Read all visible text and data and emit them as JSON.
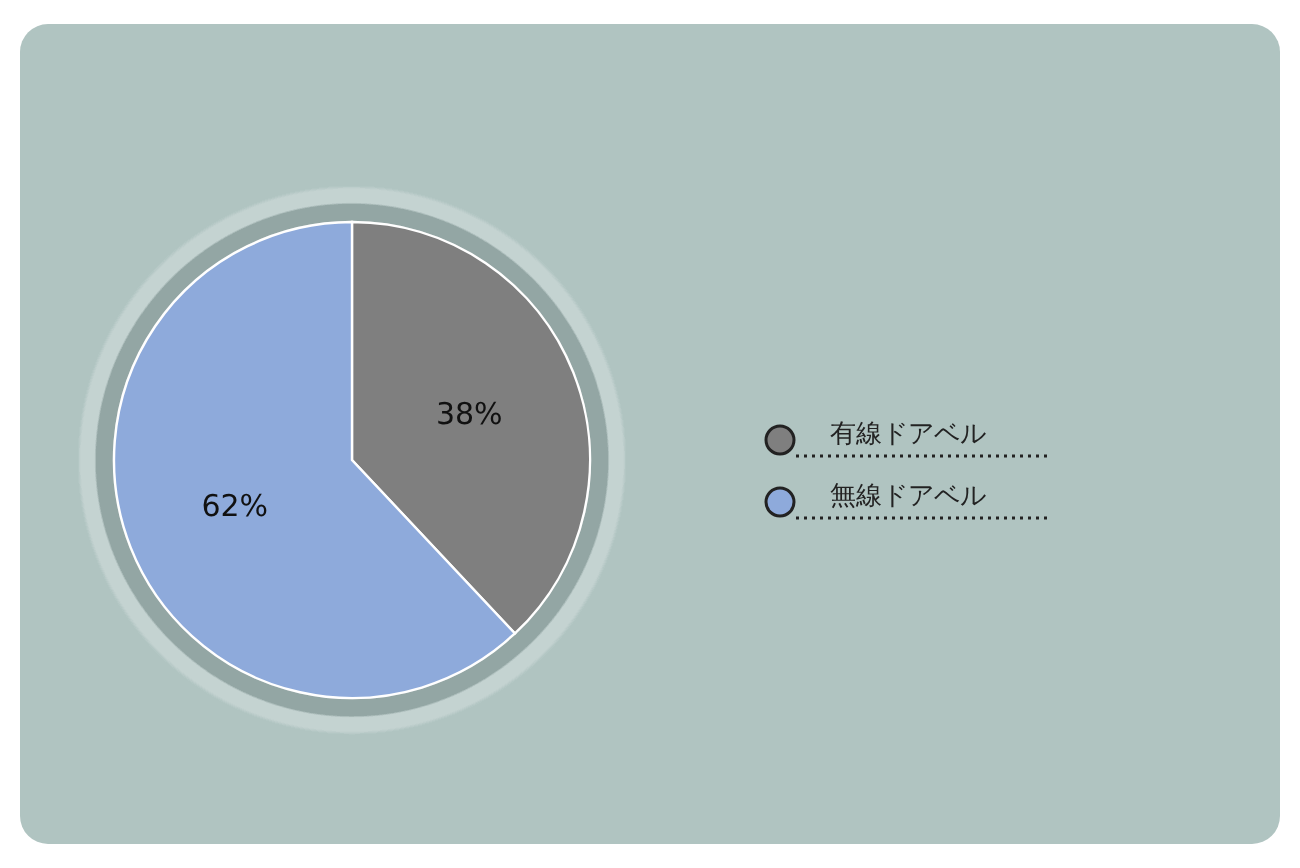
{
  "chart_data": {
    "type": "pie",
    "categories": [
      "有線ドアベル",
      "無線ドアベル"
    ],
    "values": [
      38,
      62
    ],
    "colors": [
      "#7f7f7f",
      "#8eaadb"
    ],
    "value_labels": [
      "38%",
      "62%"
    ],
    "legend": "right"
  }
}
